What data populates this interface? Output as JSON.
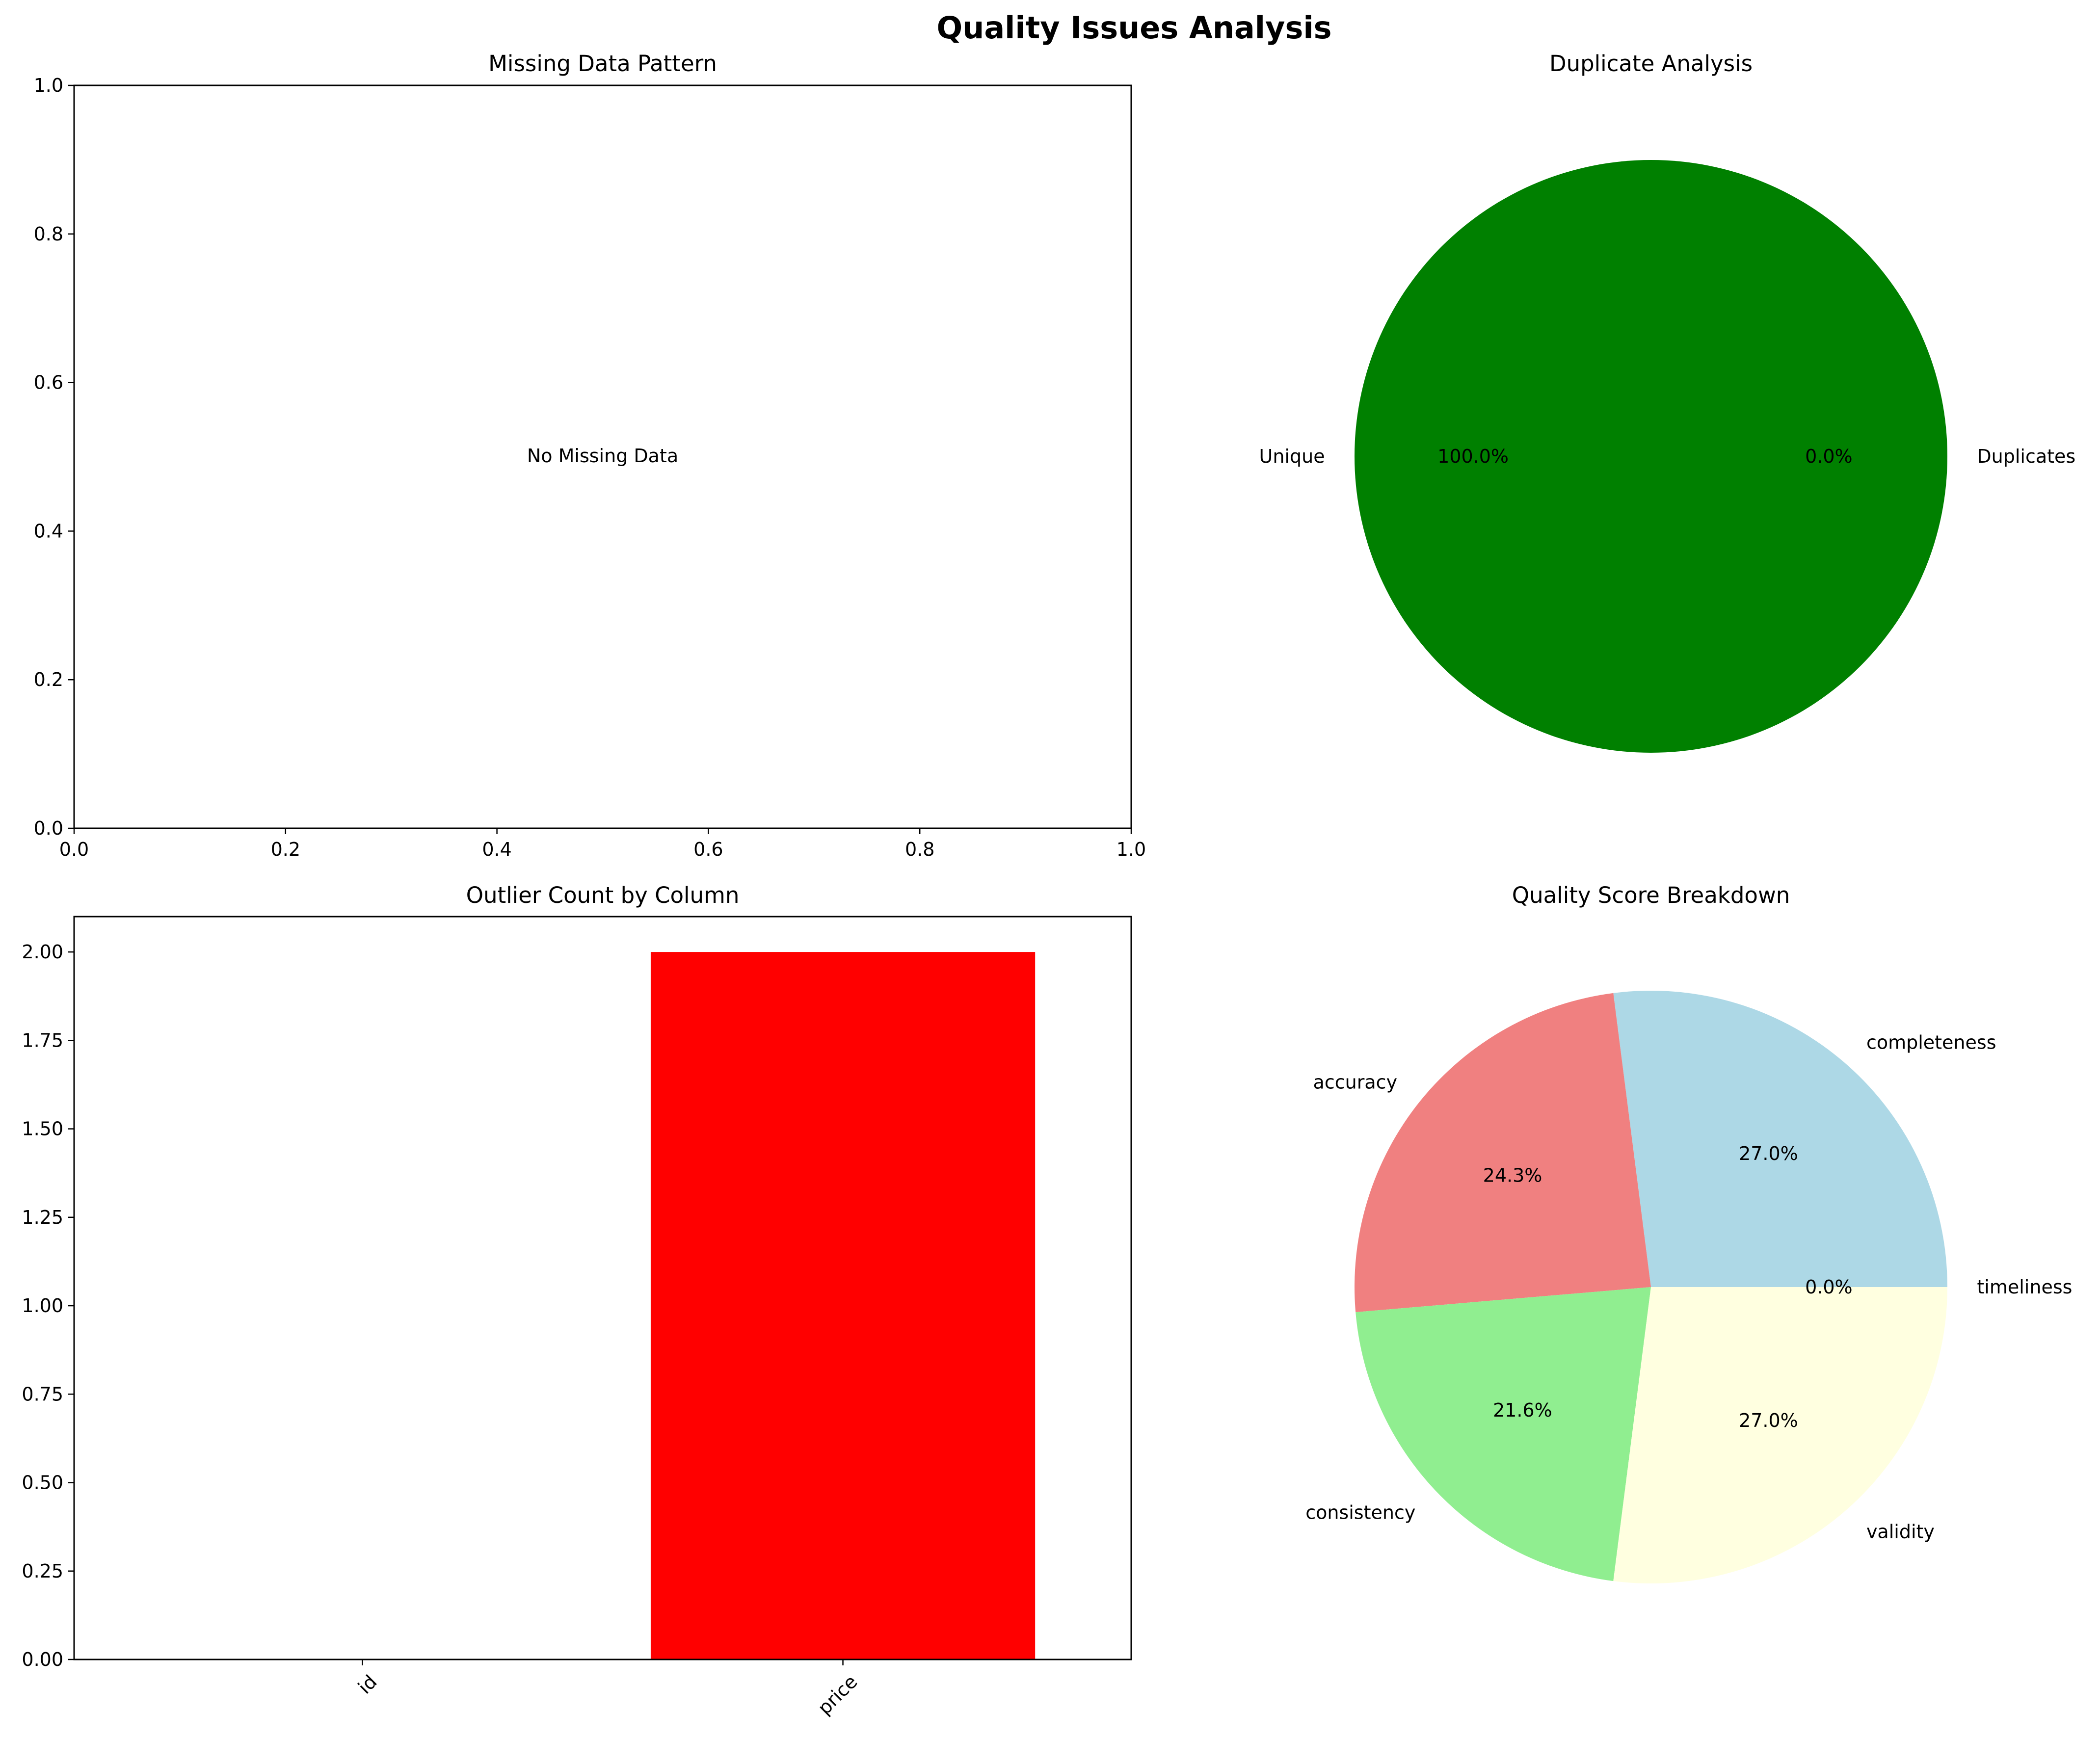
{
  "figure": {
    "title": "Quality Issues Analysis"
  },
  "chart_data": [
    {
      "type": "scatter",
      "title": "Missing Data Pattern",
      "xlabel": "",
      "ylabel": "",
      "xlim": [
        0,
        1
      ],
      "ylim": [
        0,
        1
      ],
      "x_ticks": [
        "0.0",
        "0.2",
        "0.4",
        "0.6",
        "0.8",
        "1.0"
      ],
      "y_ticks": [
        "0.0",
        "0.2",
        "0.4",
        "0.6",
        "0.8",
        "1.0"
      ],
      "annotation": "No Missing Data",
      "series": []
    },
    {
      "type": "pie",
      "title": "Duplicate Analysis",
      "labels": [
        "Unique",
        "Duplicates"
      ],
      "values": [
        100.0,
        0.0
      ],
      "percent_labels": [
        "100.0%",
        "0.0%"
      ],
      "colors": [
        "#008000",
        "#ff0000"
      ]
    },
    {
      "type": "bar",
      "title": "Outlier Count by Column",
      "xlabel": "",
      "ylabel": "",
      "categories": [
        "id",
        "price"
      ],
      "values": [
        0,
        2
      ],
      "ylim": [
        0,
        2.1
      ],
      "y_ticks": [
        "0.00",
        "0.25",
        "0.50",
        "0.75",
        "1.00",
        "1.25",
        "1.50",
        "1.75",
        "2.00"
      ],
      "colors": [
        "#ff0000",
        "#ff0000"
      ]
    },
    {
      "type": "pie",
      "title": "Quality Score Breakdown",
      "labels": [
        "completeness",
        "accuracy",
        "consistency",
        "validity",
        "timeliness"
      ],
      "values": [
        27.0,
        24.3,
        21.6,
        27.0,
        0.0
      ],
      "percent_labels": [
        "27.0%",
        "24.3%",
        "21.6%",
        "27.0%",
        "0.0%"
      ],
      "colors": [
        "#add8e6",
        "#f08080",
        "#90ee90",
        "#ffffe0",
        "#ffb6c1"
      ]
    }
  ]
}
